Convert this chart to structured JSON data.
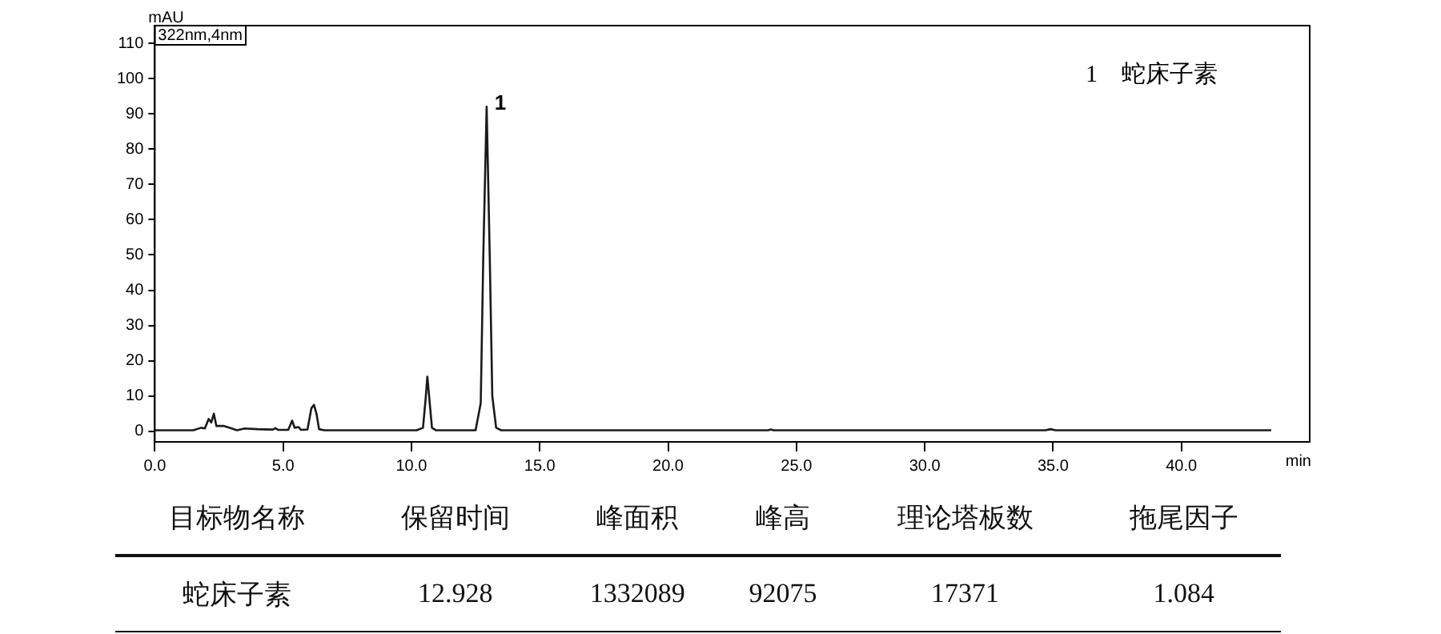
{
  "chart_data": {
    "type": "line",
    "xlabel": "min",
    "ylabel": "mAU",
    "x": [
      0,
      1.5,
      1.8,
      1.95,
      2.1,
      2.2,
      2.3,
      2.4,
      2.7,
      3.0,
      3.2,
      3.5,
      4.0,
      4.6,
      4.7,
      4.8,
      5.2,
      5.35,
      5.45,
      5.6,
      5.7,
      5.95,
      6.1,
      6.2,
      6.3,
      6.4,
      6.6,
      7.2,
      10.2,
      10.45,
      10.55,
      10.62,
      10.7,
      10.8,
      10.95,
      12.5,
      12.7,
      12.8,
      12.93,
      13.05,
      13.15,
      13.3,
      13.5,
      23.9,
      24,
      24.1,
      34.7,
      34.9,
      35.1,
      43.5
    ],
    "series": [
      {
        "color": "#1a1a1a",
        "values": [
          0.3,
          0.3,
          1,
          0.8,
          3.5,
          2.5,
          5,
          1.5,
          1.5,
          0.8,
          0.3,
          0.8,
          0.6,
          0.5,
          0.9,
          0.4,
          0.4,
          3,
          1,
          1.2,
          0.4,
          0.5,
          6.5,
          7.5,
          5,
          0.6,
          0.3,
          0.3,
          0.3,
          1,
          9,
          15.5,
          9,
          1,
          0.3,
          0.3,
          8,
          50,
          92,
          50,
          10,
          1,
          0.3,
          0.3,
          0.5,
          0.3,
          0.3,
          0.6,
          0.3,
          0.3
        ]
      }
    ],
    "xlim": [
      0,
      45
    ],
    "ylim": [
      -3,
      115
    ],
    "xticks": [
      {
        "value": 0,
        "label": "0.0"
      },
      {
        "value": 5,
        "label": "5.0"
      },
      {
        "value": 10,
        "label": "10.0"
      },
      {
        "value": 15,
        "label": "15.0"
      },
      {
        "value": 20,
        "label": "20.0"
      },
      {
        "value": 25,
        "label": "25.0"
      },
      {
        "value": 30,
        "label": "30.0"
      },
      {
        "value": 35,
        "label": "35.0"
      },
      {
        "value": 40,
        "label": "40.0"
      }
    ],
    "yticks": [
      0,
      10,
      20,
      30,
      40,
      50,
      60,
      70,
      80,
      90,
      100,
      110
    ],
    "grid": false,
    "legend": false,
    "marker": "none",
    "line_style": "solid",
    "annotations": [
      "322nm,4nm",
      "1　蛇床子素",
      {
        "text": "1",
        "x": 12.928,
        "y": 92
      },
      "目标物名称",
      "保留时间",
      "峰面积",
      "峰高",
      "理论塔板数",
      "拖尾因子",
      "蛇床子素",
      "12.928",
      "1332089",
      "92075",
      "17371",
      "1.084"
    ]
  }
}
